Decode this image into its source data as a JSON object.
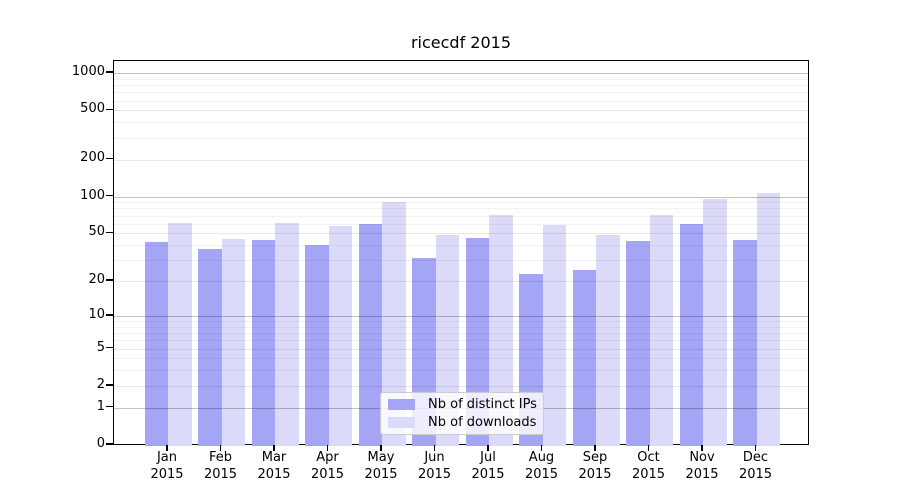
{
  "title": "ricecdf 2015",
  "chart_data": {
    "type": "bar",
    "title": "ricecdf 2015",
    "categories": [
      "Jan 2015",
      "Feb 2015",
      "Mar 2015",
      "Apr 2015",
      "May 2015",
      "Jun 2015",
      "Jul 2015",
      "Aug 2015",
      "Sep 2015",
      "Oct 2015",
      "Nov 2015",
      "Dec 2015"
    ],
    "series": [
      {
        "name": "Nb of distinct IPs",
        "color": "#a5a5f5",
        "values": [
          42,
          37,
          44,
          40,
          60,
          31,
          46,
          23,
          25,
          43,
          60,
          44
        ]
      },
      {
        "name": "Nb of downloads",
        "color": "#dbdbf9",
        "values": [
          61,
          45,
          61,
          57,
          90,
          48,
          71,
          59,
          48,
          70,
          95,
          106
        ]
      }
    ],
    "xlabel": "",
    "ylabel": "",
    "y_axis": {
      "scale": "log1p",
      "ticks": [
        0,
        1,
        2,
        5,
        10,
        20,
        50,
        100,
        200,
        500,
        1000
      ],
      "minor_gridlines": [
        3,
        4,
        6,
        7,
        8,
        9,
        30,
        40,
        60,
        70,
        80,
        90,
        300,
        400,
        600,
        700,
        800,
        900
      ],
      "ylim": [
        0,
        1250
      ]
    },
    "grid": "on",
    "legend_position": "lower center"
  },
  "legend": {
    "items": [
      {
        "label": "Nb of distinct IPs",
        "color": "#a5a5f5"
      },
      {
        "label": "Nb of downloads",
        "color": "#dbdbf9"
      }
    ]
  },
  "colors": {
    "series_dark": "#a5a5f5",
    "series_light": "#dbdbf9",
    "grid_major": "rgba(0,0,0,0.24)",
    "grid_mid": "rgba(0,0,0,0.09)",
    "grid_minor": "rgba(0,0,0,0.05)",
    "spine": "#000000",
    "legend_border": "#cccccc"
  }
}
